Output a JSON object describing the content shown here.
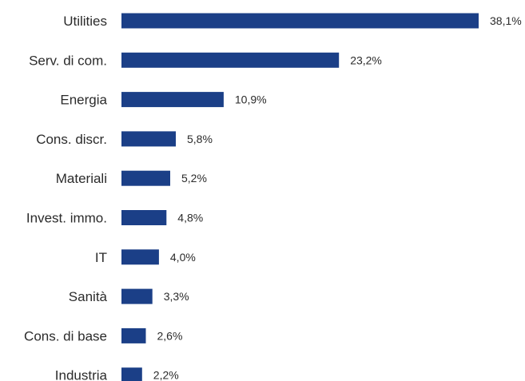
{
  "chart_data": {
    "type": "bar",
    "orientation": "horizontal",
    "categories": [
      "Utilities",
      "Serv. di com.",
      "Energia",
      "Cons. discr.",
      "Materiali",
      "Invest. immo.",
      "IT",
      "Sanità",
      "Cons. di base",
      "Industria"
    ],
    "values": [
      38.1,
      23.2,
      10.9,
      5.8,
      5.2,
      4.8,
      4.0,
      3.3,
      2.6,
      2.2
    ],
    "value_labels": [
      "38,1%",
      "23,2%",
      "10,9%",
      "5,8%",
      "5,2%",
      "4,8%",
      "4,0%",
      "3,3%",
      "2,6%",
      "2,2%"
    ],
    "title": "",
    "xlabel": "",
    "ylabel": "",
    "xlim": [
      0,
      38.1
    ],
    "grid": false,
    "legend": "none",
    "bar_color": "#1b3f87"
  }
}
